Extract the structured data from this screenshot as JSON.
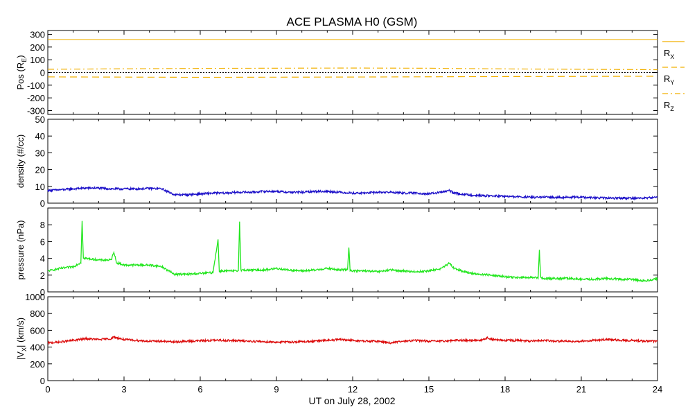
{
  "chart_data": {
    "title": "ACE PLASMA H0 (GSM)",
    "type": "line",
    "xlabel": "UT on July 28, 2002",
    "xlim": [
      0,
      24
    ],
    "x_ticks": [
      "0",
      "3",
      "6",
      "9",
      "12",
      "15",
      "18",
      "21",
      "24"
    ],
    "panels": [
      {
        "id": "pos",
        "ylabel": "Pos (R",
        "ylabel_sub": "E",
        "ylabel_end": ")",
        "ylim": [
          -330,
          330
        ],
        "y_ticks": [
          "300",
          "200",
          "100",
          "0",
          "-100",
          "-200",
          "-300"
        ],
        "zero_line": true,
        "legend": [
          {
            "label": "R",
            "sub": "X",
            "style": "solid",
            "color": "#f2b000"
          },
          {
            "label": "R",
            "sub": "Y",
            "style": "dashed",
            "color": "#f2b000"
          },
          {
            "label": "R",
            "sub": "Z",
            "style": "dashdot",
            "color": "#f2b000"
          }
        ],
        "series": [
          {
            "name": "RX",
            "color": "#f2b000",
            "style": "solid",
            "x": [
              0,
              24
            ],
            "y": [
              258,
              258
            ]
          },
          {
            "name": "RY",
            "color": "#f2b000",
            "style": "dashed",
            "x": [
              0,
              6,
              12,
              18,
              24
            ],
            "y": [
              -35,
              -38,
              -36,
              -32,
              -30
            ]
          },
          {
            "name": "RZ",
            "color": "#f2b000",
            "style": "dashdot",
            "x": [
              0,
              6,
              12,
              15,
              18,
              24
            ],
            "y": [
              25,
              32,
              35,
              33,
              28,
              22
            ]
          }
        ]
      },
      {
        "id": "density",
        "ylabel": "density (#/cc)",
        "ylim": [
          0,
          50
        ],
        "y_ticks": [
          "50",
          "40",
          "30",
          "20",
          "10",
          "0"
        ],
        "series": [
          {
            "name": "density",
            "color": "#1c10c8",
            "x": [
              0,
              0.5,
              1,
              1.5,
              2,
              2.5,
              3,
              3.5,
              4,
              4.5,
              4.7,
              5,
              5.5,
              6,
              6.5,
              7,
              7.5,
              8,
              8.5,
              9,
              9.5,
              10,
              10.5,
              11,
              11.5,
              12,
              12.5,
              13,
              13.5,
              14,
              14.5,
              15,
              15.5,
              15.8,
              16,
              16.5,
              17,
              17.5,
              18,
              18.5,
              19,
              19.5,
              20,
              20.5,
              21,
              21.5,
              22,
              22.5,
              23,
              23.5,
              24
            ],
            "y": [
              7.5,
              8,
              8.5,
              9,
              9,
              8.5,
              8.5,
              8.5,
              8.8,
              8.5,
              7,
              5,
              5,
              5.5,
              6,
              6,
              6.5,
              6.5,
              7,
              7,
              6.5,
              6.5,
              7,
              7,
              6.5,
              6,
              6,
              6.5,
              6.5,
              6,
              6,
              5.5,
              6.5,
              7.5,
              6,
              5,
              4.5,
              4.3,
              4,
              3.8,
              3.5,
              3.5,
              3.5,
              3.5,
              3.5,
              3.2,
              3,
              3,
              3,
              3,
              3.5
            ]
          }
        ]
      },
      {
        "id": "pressure",
        "ylabel": "pressure (nPa)",
        "ylim": [
          0,
          10
        ],
        "y_ticks": [
          "8",
          "6",
          "4",
          "2",
          "0"
        ],
        "series": [
          {
            "name": "pressure",
            "color": "#22e61e",
            "x": [
              0,
              0.5,
              1,
              1.3,
              1.35,
              1.4,
              1.5,
              2,
              2.5,
              2.6,
              2.7,
              3,
              3.5,
              4,
              4.5,
              4.7,
              5,
              5.5,
              6,
              6.5,
              6.7,
              6.75,
              6.8,
              7,
              7.5,
              7.55,
              7.6,
              8,
              8.5,
              9,
              9.5,
              10,
              10.5,
              11,
              11.5,
              11.8,
              11.85,
              11.9,
              12,
              12.5,
              13,
              13.5,
              14,
              14.5,
              15,
              15.5,
              15.8,
              16,
              16.5,
              17,
              17.5,
              18,
              18.5,
              19,
              19.3,
              19.35,
              19.4,
              19.5,
              20,
              20.5,
              21,
              21.5,
              22,
              22.5,
              23,
              23.5,
              24
            ],
            "y": [
              2.5,
              2.8,
              3,
              3.5,
              8.5,
              4,
              4,
              3.8,
              3.8,
              4.8,
              3.5,
              3.2,
              3.2,
              3.2,
              3,
              2.6,
              2.1,
              2.1,
              2.2,
              2.3,
              6.2,
              2.4,
              2.5,
              2.5,
              2.5,
              8.5,
              2.6,
              2.6,
              2.6,
              2.8,
              2.6,
              2.5,
              2.6,
              2.8,
              2.6,
              2.7,
              5.4,
              2.6,
              2.5,
              2.5,
              2.4,
              2.6,
              2.5,
              2.4,
              2.5,
              2.8,
              3.4,
              2.8,
              2.3,
              2.1,
              2,
              1.8,
              1.7,
              1.7,
              1.7,
              5,
              1.7,
              1.6,
              1.6,
              1.6,
              1.5,
              1.5,
              1.6,
              1.5,
              1.5,
              1.3,
              1.6
            ]
          }
        ]
      },
      {
        "id": "vx",
        "ylabel": "|V",
        "ylabel_sub": "X",
        "ylabel_end": "| (km/s)",
        "ylim": [
          0,
          1000
        ],
        "y_ticks": [
          "1000",
          "800",
          "600",
          "400",
          "200",
          "0"
        ],
        "series": [
          {
            "name": "|Vx|",
            "color": "#dc0c0c",
            "x": [
              0,
              0.5,
              1,
              1.5,
              2,
              2.5,
              2.6,
              3,
              3.5,
              4,
              4.5,
              5,
              5.5,
              6,
              6.5,
              7,
              7.5,
              8,
              8.5,
              9,
              9.5,
              10,
              10.5,
              11,
              11.5,
              12,
              12.5,
              13,
              13.5,
              14,
              14.5,
              15,
              15.5,
              16,
              16.5,
              17,
              17.3,
              17.5,
              18,
              18.5,
              19,
              19.5,
              20,
              20.5,
              21,
              21.5,
              22,
              22.5,
              23,
              23.5,
              24
            ],
            "y": [
              450,
              460,
              480,
              500,
              490,
              500,
              520,
              490,
              480,
              470,
              470,
              460,
              470,
              475,
              480,
              480,
              475,
              470,
              465,
              460,
              460,
              465,
              470,
              480,
              490,
              480,
              470,
              470,
              450,
              470,
              480,
              470,
              470,
              480,
              480,
              480,
              510,
              490,
              480,
              480,
              470,
              480,
              470,
              470,
              470,
              480,
              490,
              480,
              480,
              470,
              470
            ]
          }
        ]
      }
    ]
  }
}
